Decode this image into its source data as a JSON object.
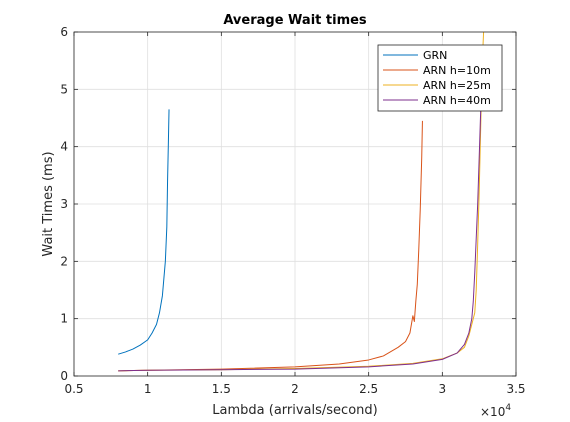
{
  "chart_data": {
    "type": "line",
    "title": "Average Wait times",
    "xlabel": "Lambda (arrivals/second)",
    "ylabel": "Wait Times (ms)",
    "x_multiplier_label": "×10",
    "x_multiplier_exponent": "4",
    "xlim": [
      0.5,
      3.5
    ],
    "ylim": [
      0,
      6
    ],
    "x_ticks": [
      0.5,
      1,
      1.5,
      2,
      2.5,
      3,
      3.5
    ],
    "x_tick_labels": [
      "0.5",
      "1",
      "1.5",
      "2",
      "2.5",
      "3",
      "3.5"
    ],
    "y_ticks": [
      0,
      1,
      2,
      3,
      4,
      5,
      6
    ],
    "y_tick_labels": [
      "0",
      "1",
      "2",
      "3",
      "4",
      "5",
      "6"
    ],
    "grid": true,
    "legend_position": "top-right",
    "series": [
      {
        "name": "GRN",
        "color": "#0072bd",
        "x": [
          0.8,
          0.85,
          0.9,
          0.95,
          1.0,
          1.03,
          1.06,
          1.08,
          1.1,
          1.11,
          1.12,
          1.13,
          1.135,
          1.14,
          1.145
        ],
        "y": [
          0.38,
          0.42,
          0.47,
          0.54,
          0.63,
          0.75,
          0.9,
          1.1,
          1.4,
          1.7,
          2.0,
          2.6,
          3.4,
          4.0,
          4.65
        ]
      },
      {
        "name": "ARN h=10m",
        "color": "#d95319",
        "x": [
          0.8,
          1.0,
          1.5,
          2.0,
          2.3,
          2.5,
          2.6,
          2.7,
          2.75,
          2.78,
          2.8,
          2.81,
          2.82,
          2.83,
          2.84,
          2.85,
          2.86,
          2.865
        ],
        "y": [
          0.09,
          0.1,
          0.12,
          0.16,
          0.21,
          0.28,
          0.35,
          0.5,
          0.6,
          0.75,
          1.05,
          0.95,
          1.3,
          1.6,
          2.2,
          2.9,
          3.8,
          4.45
        ]
      },
      {
        "name": "ARN h=25m",
        "color": "#edb120",
        "x": [
          0.8,
          1.0,
          1.5,
          2.0,
          2.5,
          2.8,
          3.0,
          3.1,
          3.15,
          3.18,
          3.2,
          3.22,
          3.23,
          3.24,
          3.25,
          3.26,
          3.27,
          3.28
        ],
        "y": [
          0.09,
          0.1,
          0.11,
          0.13,
          0.17,
          0.22,
          0.3,
          0.4,
          0.5,
          0.7,
          0.9,
          1.1,
          1.5,
          2.3,
          3.2,
          4.3,
          5.4,
          6.0
        ]
      },
      {
        "name": "ARN h=40m",
        "color": "#7e2f8e",
        "x": [
          0.8,
          1.0,
          1.5,
          2.0,
          2.5,
          2.8,
          3.0,
          3.1,
          3.15,
          3.18,
          3.2,
          3.21,
          3.22,
          3.23,
          3.24,
          3.25,
          3.26,
          3.27
        ],
        "y": [
          0.09,
          0.1,
          0.11,
          0.12,
          0.16,
          0.21,
          0.29,
          0.4,
          0.55,
          0.75,
          1.0,
          1.3,
          1.8,
          2.4,
          3.0,
          3.8,
          4.6,
          5.4
        ]
      }
    ]
  }
}
